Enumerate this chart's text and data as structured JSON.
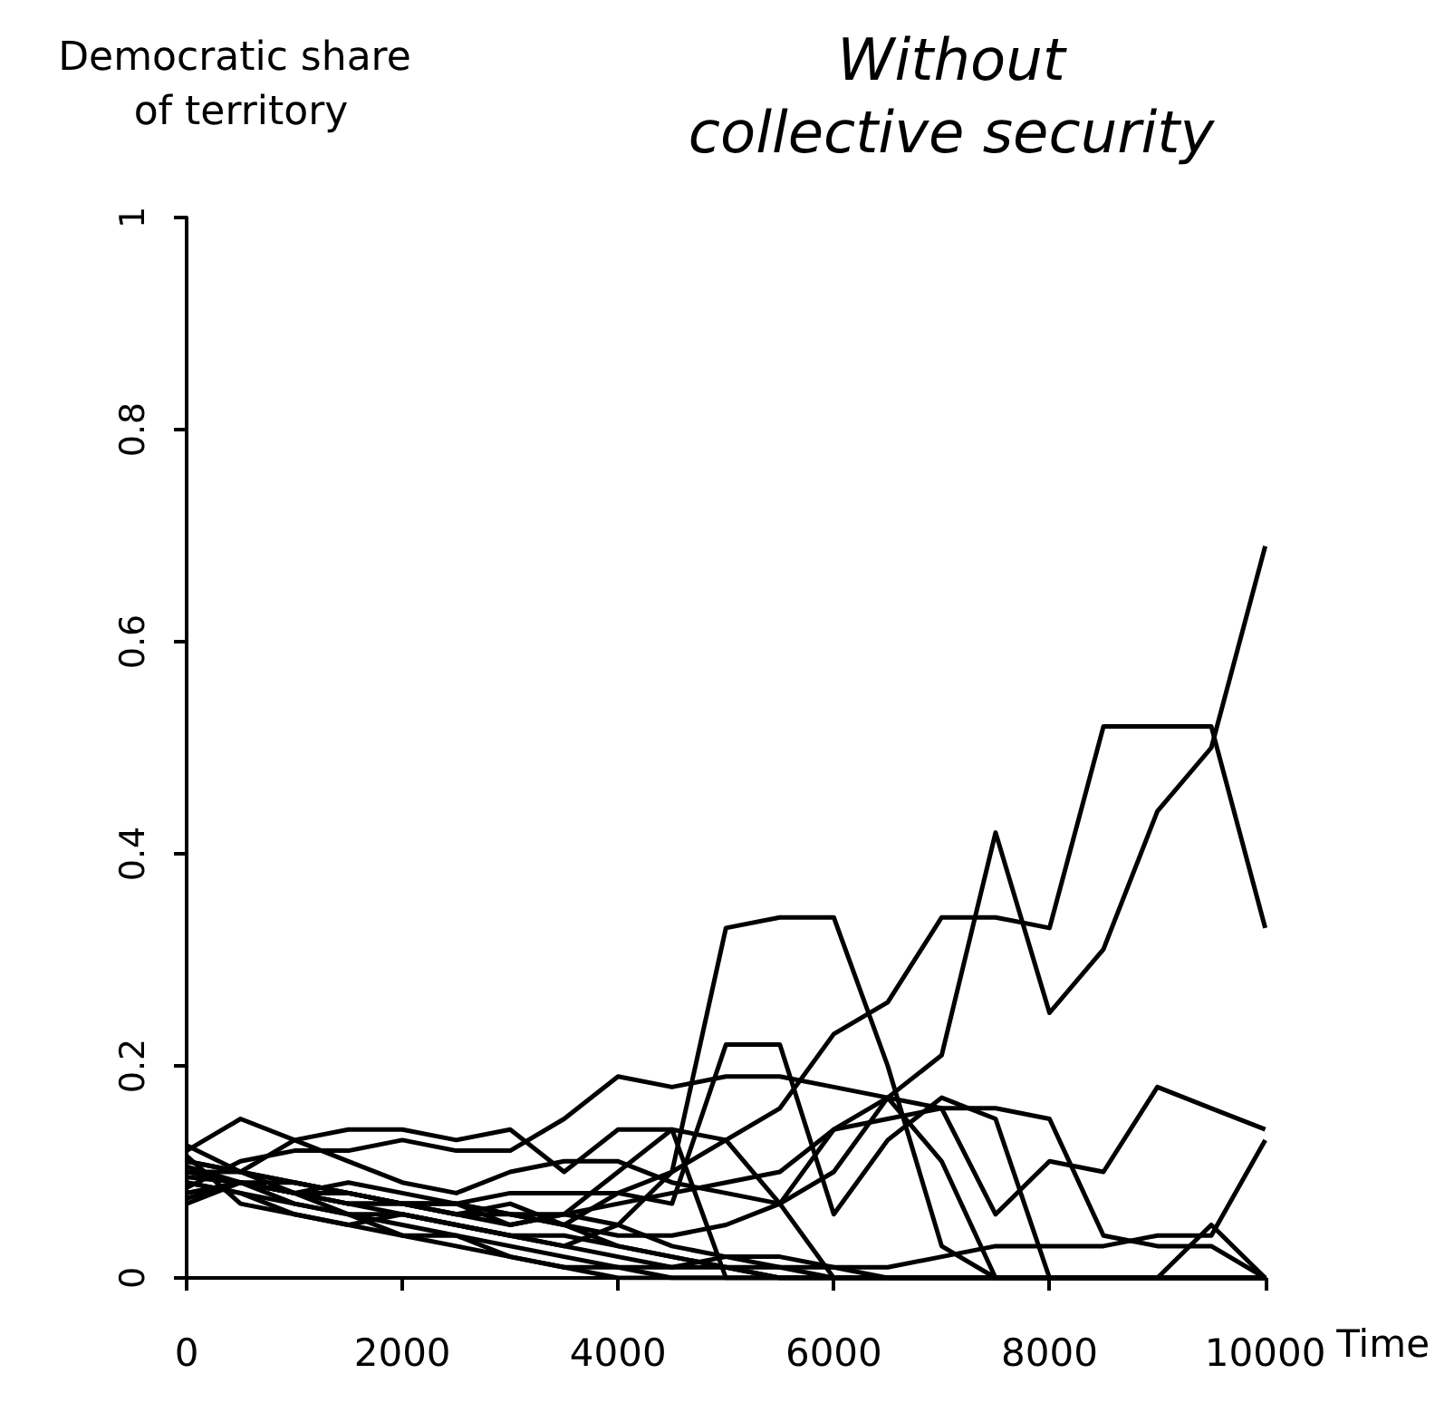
{
  "chart_data": {
    "type": "line",
    "title": "Without collective security",
    "ylabel": "Democratic share of territory",
    "xlabel": "Time",
    "x": [
      0,
      500,
      1000,
      1500,
      2000,
      2500,
      3000,
      3500,
      4000,
      4500,
      5000,
      5500,
      6000,
      6500,
      7000,
      7500,
      8000,
      8500,
      9000,
      9500,
      10000
    ],
    "xlim": [
      0,
      10000
    ],
    "xticks": [
      0,
      2000,
      4000,
      6000,
      8000,
      10000
    ],
    "ylim": [
      0,
      1
    ],
    "yticks": [
      0,
      0.2,
      0.4,
      0.6,
      0.8,
      1
    ],
    "series": [
      {
        "color": "#000000",
        "values": [
          0.1,
          0.09,
          0.08,
          0.07,
          0.07,
          0.06,
          0.06,
          0.05,
          0.08,
          0.1,
          0.13,
          0.07,
          0.14,
          0.17,
          0.21,
          0.42,
          0.25,
          0.31,
          0.44,
          0.5,
          0.69
        ]
      },
      {
        "color": "#000000",
        "values": [
          0.11,
          0.1,
          0.09,
          0.08,
          0.07,
          0.06,
          0.05,
          0.06,
          0.1,
          0.14,
          0.13,
          0.16,
          0.23,
          0.26,
          0.34,
          0.34,
          0.33,
          0.52,
          0.52,
          0.52,
          0.33
        ]
      },
      {
        "color": "#000000",
        "values": [
          0.07,
          0.09,
          0.08,
          0.07,
          0.06,
          0.05,
          0.04,
          0.03,
          0.05,
          0.1,
          0.33,
          0.34,
          0.34,
          0.2,
          0.03,
          0.0,
          0.0,
          0.0,
          0.0,
          0.0,
          0.0
        ]
      },
      {
        "color": "#000000",
        "values": [
          0.075,
          0.09,
          0.09,
          0.08,
          0.07,
          0.07,
          0.06,
          0.06,
          0.07,
          0.08,
          0.09,
          0.1,
          0.14,
          0.15,
          0.16,
          0.16,
          0.15,
          0.04,
          0.03,
          0.03,
          0.0
        ]
      },
      {
        "color": "#000000",
        "values": [
          0.08,
          0.09,
          0.08,
          0.08,
          0.07,
          0.07,
          0.06,
          0.05,
          0.04,
          0.04,
          0.05,
          0.07,
          0.1,
          0.17,
          0.16,
          0.06,
          0.11,
          0.1,
          0.18,
          0.16,
          0.14
        ]
      },
      {
        "color": "#000000",
        "values": [
          0.09,
          0.08,
          0.07,
          0.06,
          0.06,
          0.05,
          0.04,
          0.03,
          0.02,
          0.01,
          0.02,
          0.02,
          0.01,
          0.01,
          0.02,
          0.03,
          0.03,
          0.03,
          0.04,
          0.04,
          0.13
        ]
      },
      {
        "color": "#000000",
        "values": [
          0.08,
          0.09,
          0.08,
          0.07,
          0.07,
          0.07,
          0.08,
          0.08,
          0.08,
          0.07,
          0.22,
          0.22,
          0.06,
          0.13,
          0.17,
          0.15,
          0.0,
          0.0,
          0.0,
          0.05,
          0.0
        ]
      },
      {
        "color": "#000000",
        "values": [
          0.085,
          0.11,
          0.12,
          0.12,
          0.13,
          0.12,
          0.12,
          0.15,
          0.19,
          0.18,
          0.19,
          0.19,
          0.18,
          0.17,
          0.11,
          0.0,
          0.0,
          0.0,
          0.0,
          0.0,
          0.0
        ]
      },
      {
        "color": "#000000",
        "values": [
          0.12,
          0.15,
          0.13,
          0.11,
          0.09,
          0.08,
          0.1,
          0.11,
          0.11,
          0.09,
          0.08,
          0.07,
          0.0,
          0.0,
          0.0,
          0.0,
          0.0,
          0.0,
          0.0,
          0.0,
          0.0
        ]
      },
      {
        "color": "#000000",
        "values": [
          0.11,
          0.1,
          0.13,
          0.14,
          0.14,
          0.13,
          0.14,
          0.1,
          0.14,
          0.14,
          0.0,
          0.0,
          0.0,
          0.0,
          0.0,
          0.0,
          0.0,
          0.0,
          0.0,
          0.0,
          0.0
        ]
      },
      {
        "color": "#000000",
        "values": [
          0.095,
          0.09,
          0.08,
          0.06,
          0.05,
          0.04,
          0.02,
          0.01,
          0.0,
          0.0,
          0.0,
          0.0,
          0.0,
          0.0,
          0.0,
          0.0,
          0.0,
          0.0,
          0.0,
          0.0,
          0.0
        ]
      },
      {
        "color": "#000000",
        "values": [
          0.09,
          0.08,
          0.06,
          0.05,
          0.04,
          0.03,
          0.02,
          0.01,
          0.01,
          0.0,
          0.0,
          0.0,
          0.0,
          0.0,
          0.0,
          0.0,
          0.0,
          0.0,
          0.0,
          0.0,
          0.0
        ]
      },
      {
        "color": "#000000",
        "values": [
          0.105,
          0.09,
          0.07,
          0.06,
          0.04,
          0.04,
          0.03,
          0.02,
          0.01,
          0.01,
          0.01,
          0.0,
          0.0,
          0.0,
          0.0,
          0.0,
          0.0,
          0.0,
          0.0,
          0.0,
          0.0
        ]
      },
      {
        "color": "#000000",
        "values": [
          0.115,
          0.07,
          0.06,
          0.05,
          0.06,
          0.05,
          0.04,
          0.04,
          0.03,
          0.02,
          0.01,
          0.0,
          0.0,
          0.0,
          0.0,
          0.0,
          0.0,
          0.0,
          0.0,
          0.0,
          0.0
        ]
      },
      {
        "color": "#000000",
        "values": [
          0.1,
          0.1,
          0.09,
          0.08,
          0.07,
          0.06,
          0.07,
          0.05,
          0.03,
          0.02,
          0.01,
          0.01,
          0.0,
          0.0,
          0.0,
          0.0,
          0.0,
          0.0,
          0.0,
          0.0,
          0.0
        ]
      },
      {
        "color": "#000000",
        "values": [
          0.125,
          0.1,
          0.08,
          0.09,
          0.08,
          0.07,
          0.05,
          0.06,
          0.05,
          0.03,
          0.02,
          0.01,
          0.01,
          0.0,
          0.0,
          0.0,
          0.0,
          0.0,
          0.0,
          0.0,
          0.0
        ]
      }
    ]
  }
}
